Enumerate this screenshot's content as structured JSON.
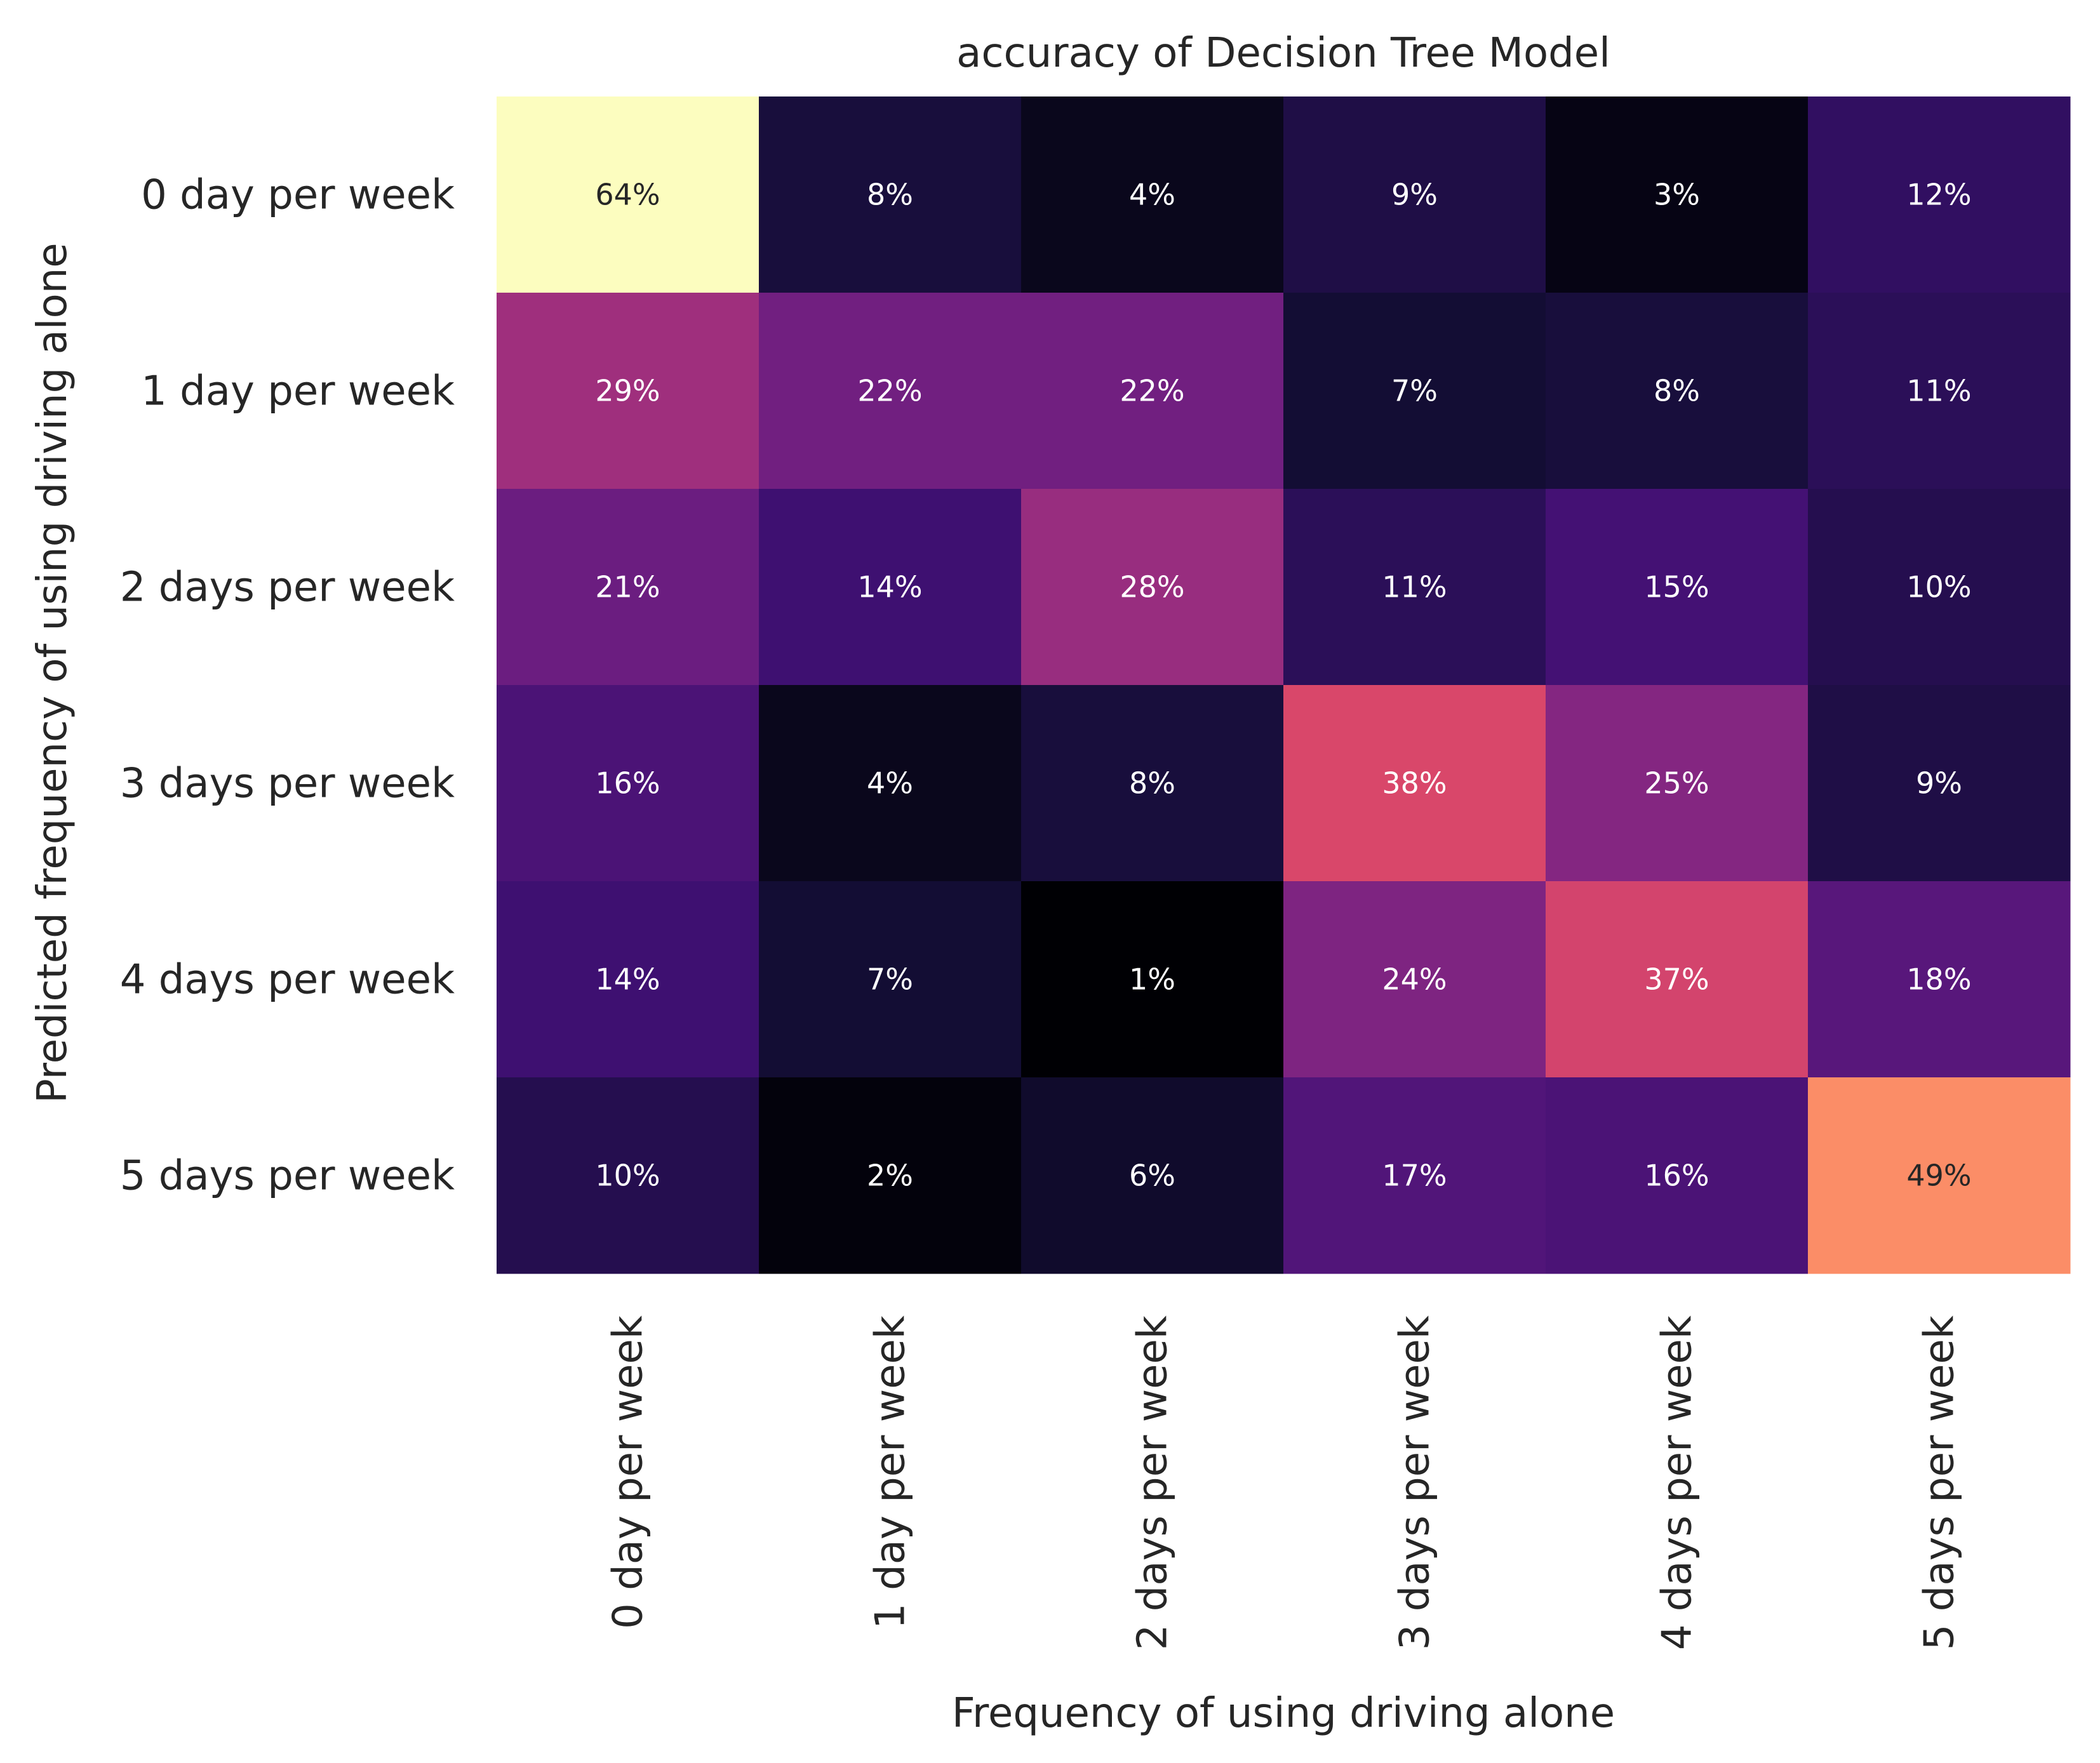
{
  "chart_data": {
    "type": "heatmap",
    "title": "accuracy of Decision Tree Model",
    "xlabel": "Frequency of using driving alone",
    "ylabel": "Predicted frequency of using driving alone",
    "x_categories": [
      "0 day per week",
      "1 day per week",
      "2 days per week",
      "3 days per week",
      "4 days per week",
      "5 days per week"
    ],
    "y_categories": [
      "0 day per week",
      "1 day per week",
      "2 days per week",
      "3 days per week",
      "4 days per week",
      "5 days per week"
    ],
    "values": [
      [
        64,
        8,
        4,
        9,
        3,
        12
      ],
      [
        29,
        22,
        22,
        7,
        8,
        11
      ],
      [
        21,
        14,
        28,
        11,
        15,
        10
      ],
      [
        16,
        4,
        8,
        38,
        25,
        9
      ],
      [
        14,
        7,
        1,
        24,
        37,
        18
      ],
      [
        10,
        2,
        6,
        17,
        16,
        49
      ]
    ],
    "value_format": "percent",
    "colormap": "magma",
    "grid": false,
    "colorbar": false
  }
}
